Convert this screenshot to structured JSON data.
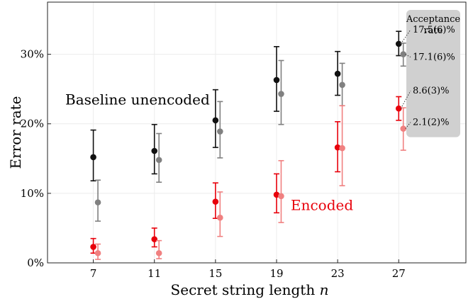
{
  "chart_data": {
    "type": "scatter",
    "xlabel": "Secret string length n",
    "ylabel": "Error rate",
    "x_ticks": [
      7,
      11,
      15,
      19,
      23,
      27
    ],
    "x_tick_labels": [
      "7",
      "11",
      "15",
      "19",
      "23",
      "27"
    ],
    "y_ticks": [
      0,
      10,
      20,
      30
    ],
    "y_tick_labels": [
      "0%",
      "10%",
      "20%",
      "30%"
    ],
    "xlim": [
      4,
      31.4
    ],
    "ylim": [
      0,
      37.5
    ],
    "grid": true,
    "series": [
      {
        "group": "baseline",
        "color": "#111111",
        "x": [
          7,
          11,
          15,
          19,
          23,
          27
        ],
        "y": [
          15.2,
          16.1,
          20.5,
          26.3,
          27.2,
          31.5
        ],
        "err_low": [
          11.8,
          12.8,
          16.6,
          21.8,
          24.1,
          29.8
        ],
        "err_high": [
          19.1,
          19.9,
          24.9,
          31.1,
          30.4,
          33.3
        ]
      },
      {
        "group": "baseline",
        "color": "#808080",
        "x": [
          7.3,
          11.3,
          15.3,
          19.3,
          23.3,
          27.3
        ],
        "y": [
          8.7,
          14.8,
          18.9,
          24.3,
          25.6,
          30.0
        ],
        "err_low": [
          6.0,
          11.6,
          15.1,
          19.9,
          22.6,
          28.3
        ],
        "err_high": [
          11.9,
          18.6,
          23.2,
          29.1,
          28.7,
          31.6
        ]
      },
      {
        "group": "encoded",
        "color": "#e8000b",
        "x": [
          7,
          11,
          15,
          19,
          23,
          27
        ],
        "y": [
          2.3,
          3.4,
          8.8,
          9.8,
          16.6,
          22.2
        ],
        "err_low": [
          1.4,
          2.3,
          6.4,
          7.2,
          13.1,
          20.5
        ],
        "err_high": [
          3.5,
          5.0,
          11.5,
          12.8,
          20.3,
          23.9
        ]
      },
      {
        "group": "encoded",
        "color": "#f08080",
        "x": [
          7.3,
          11.3,
          15.3,
          19.3,
          23.3,
          27.3
        ],
        "y": [
          1.4,
          1.4,
          6.5,
          9.6,
          16.5,
          19.3
        ],
        "err_low": [
          0.5,
          0.6,
          3.8,
          5.8,
          11.1,
          16.2
        ],
        "err_high": [
          2.7,
          3.2,
          10.2,
          14.7,
          22.6,
          22.3
        ]
      }
    ],
    "annotations": [
      {
        "text": "Baseline unencoded",
        "color": "#000000"
      },
      {
        "text": "Encoded",
        "color": "#e8000b"
      }
    ],
    "acceptance": {
      "title_line1": "Acceptance",
      "title_line2": "rate",
      "entries": [
        {
          "text": "17.5(6)%",
          "y": 31.5
        },
        {
          "text": "17.1(6)%",
          "y": 30.0
        },
        {
          "text": "8.6(3)%",
          "y": 22.2
        },
        {
          "text": "2.1(2)%",
          "y": 19.3
        }
      ]
    }
  }
}
